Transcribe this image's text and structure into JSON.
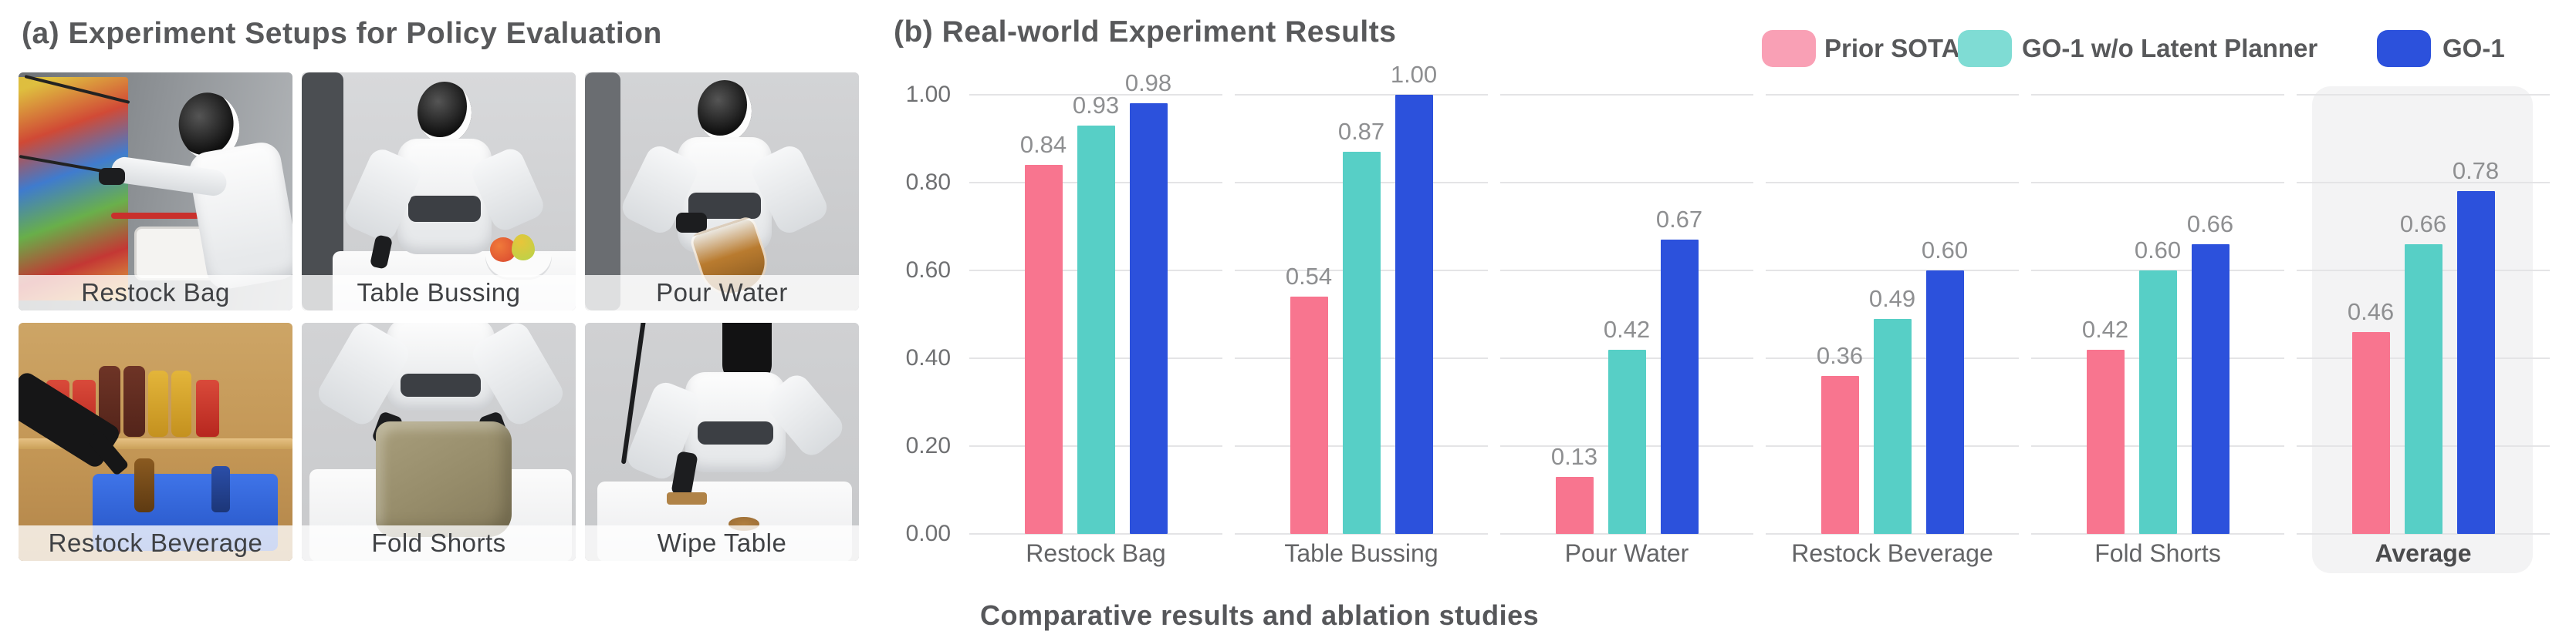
{
  "panel_a": {
    "title": "(a) Experiment Setups for Policy Evaluation",
    "tiles": [
      {
        "label": "Restock Bag"
      },
      {
        "label": "Table Bussing"
      },
      {
        "label": "Pour Water"
      },
      {
        "label": "Restock Beverage"
      },
      {
        "label": "Fold Shorts"
      },
      {
        "label": "Wipe Table"
      }
    ]
  },
  "panel_b": {
    "title": "(b) Real-world Experiment Results",
    "caption": "Comparative results and ablation studies",
    "legend": [
      {
        "label": "Prior SOTA",
        "swatch_color": "#F9A0B5"
      },
      {
        "label": "GO-1 w/o Latent Planner",
        "swatch_color": "#7FDCD4"
      },
      {
        "label": "GO-1",
        "swatch_color": "#2C51DC"
      }
    ]
  },
  "chart_data": {
    "type": "bar",
    "title": "(b) Real-world Experiment Results",
    "categories": [
      "Restock Bag",
      "Table Bussing",
      "Pour Water",
      "Restock Beverage",
      "Fold Shorts",
      "Average"
    ],
    "series": [
      {
        "name": "Prior SOTA",
        "color": "#F8758F",
        "values": [
          0.84,
          0.54,
          0.13,
          0.36,
          0.42,
          0.46
        ]
      },
      {
        "name": "GO-1 w/o Latent Planner",
        "color": "#57CFC6",
        "values": [
          0.93,
          0.87,
          0.42,
          0.49,
          0.6,
          0.66
        ]
      },
      {
        "name": "GO-1",
        "color": "#2C51DC",
        "values": [
          0.98,
          1.0,
          0.67,
          0.6,
          0.66,
          0.78
        ]
      }
    ],
    "xlabel": "",
    "ylabel": "",
    "ylim": [
      0,
      1.0
    ],
    "yticks": [
      "0.00",
      "0.20",
      "0.40",
      "0.60",
      "0.80",
      "1.00"
    ],
    "grid": true,
    "legend_position": "top-right",
    "highlight_category": "Average",
    "value_labels": true
  }
}
